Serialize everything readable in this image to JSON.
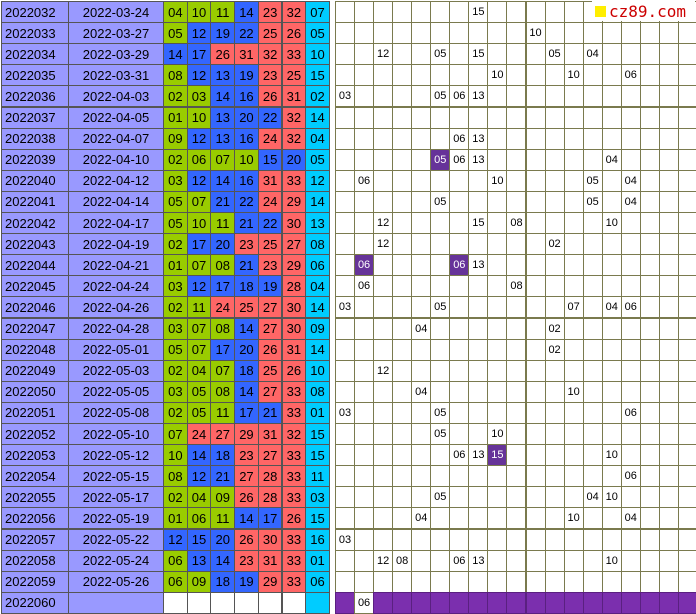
{
  "site_logo": "cz89.com",
  "rows": [
    {
      "issue": "2022032",
      "date": "2022-03-24",
      "nums": [
        "04",
        "10",
        "11",
        "14",
        "23",
        "32",
        "07"
      ],
      "colors": [
        "g",
        "g",
        "g",
        "b",
        "r",
        "r",
        "c"
      ],
      "trend": [
        [
          7,
          "15"
        ]
      ],
      "hl": []
    },
    {
      "issue": "2022033",
      "date": "2022-03-27",
      "nums": [
        "05",
        "12",
        "19",
        "22",
        "25",
        "26",
        "05"
      ],
      "colors": [
        "g",
        "b",
        "b",
        "b",
        "r",
        "r",
        "c"
      ],
      "trend": [
        [
          10,
          "10"
        ]
      ],
      "hl": []
    },
    {
      "issue": "2022034",
      "date": "2022-03-29",
      "nums": [
        "14",
        "17",
        "26",
        "31",
        "32",
        "33",
        "10"
      ],
      "colors": [
        "b",
        "b",
        "r",
        "r",
        "r",
        "r",
        "c"
      ],
      "trend": [
        [
          2,
          "12"
        ],
        [
          5,
          "05"
        ],
        [
          7,
          "15"
        ],
        [
          11,
          "05"
        ],
        [
          13,
          "04"
        ]
      ],
      "hl": []
    },
    {
      "issue": "2022035",
      "date": "2022-03-31",
      "nums": [
        "08",
        "12",
        "13",
        "19",
        "23",
        "25",
        "15"
      ],
      "colors": [
        "g",
        "b",
        "b",
        "b",
        "r",
        "r",
        "c"
      ],
      "trend": [
        [
          8,
          "10"
        ],
        [
          12,
          "10"
        ],
        [
          15,
          "06"
        ]
      ],
      "hl": []
    },
    {
      "issue": "2022036",
      "date": "2022-04-03",
      "nums": [
        "02",
        "03",
        "14",
        "16",
        "26",
        "31",
        "02"
      ],
      "colors": [
        "g",
        "g",
        "b",
        "b",
        "r",
        "r",
        "c"
      ],
      "trend": [
        [
          0,
          "03"
        ],
        [
          5,
          "05"
        ],
        [
          6,
          "06"
        ],
        [
          7,
          "13"
        ]
      ],
      "hl": []
    },
    {
      "issue": "2022037",
      "date": "2022-04-05",
      "nums": [
        "01",
        "10",
        "13",
        "20",
        "22",
        "32",
        "14"
      ],
      "colors": [
        "g",
        "g",
        "b",
        "b",
        "b",
        "r",
        "c"
      ],
      "trend": [],
      "hl": []
    },
    {
      "issue": "2022038",
      "date": "2022-04-07",
      "nums": [
        "09",
        "12",
        "13",
        "16",
        "24",
        "32",
        "04"
      ],
      "colors": [
        "g",
        "b",
        "b",
        "b",
        "r",
        "r",
        "c"
      ],
      "trend": [
        [
          6,
          "06"
        ],
        [
          7,
          "13"
        ]
      ],
      "hl": []
    },
    {
      "issue": "2022039",
      "date": "2022-04-10",
      "nums": [
        "02",
        "06",
        "07",
        "10",
        "15",
        "20",
        "05"
      ],
      "colors": [
        "g",
        "g",
        "g",
        "g",
        "b",
        "b",
        "c"
      ],
      "trend": [
        [
          5,
          "05"
        ],
        [
          6,
          "06"
        ],
        [
          7,
          "13"
        ],
        [
          14,
          "04"
        ]
      ],
      "hl": [
        5
      ]
    },
    {
      "issue": "2022040",
      "date": "2022-04-12",
      "nums": [
        "03",
        "12",
        "14",
        "16",
        "31",
        "33",
        "12"
      ],
      "colors": [
        "g",
        "b",
        "b",
        "b",
        "r",
        "r",
        "c"
      ],
      "trend": [
        [
          1,
          "06"
        ],
        [
          8,
          "10"
        ],
        [
          13,
          "05"
        ],
        [
          15,
          "04"
        ]
      ],
      "hl": []
    },
    {
      "issue": "2022041",
      "date": "2022-04-14",
      "nums": [
        "05",
        "07",
        "21",
        "22",
        "24",
        "29",
        "14"
      ],
      "colors": [
        "g",
        "g",
        "b",
        "b",
        "r",
        "r",
        "c"
      ],
      "trend": [
        [
          5,
          "05"
        ],
        [
          13,
          "05"
        ],
        [
          15,
          "04"
        ]
      ],
      "hl": []
    },
    {
      "issue": "2022042",
      "date": "2022-04-17",
      "nums": [
        "05",
        "10",
        "11",
        "21",
        "22",
        "30",
        "13"
      ],
      "colors": [
        "g",
        "g",
        "g",
        "b",
        "b",
        "r",
        "c"
      ],
      "trend": [
        [
          2,
          "12"
        ],
        [
          7,
          "15"
        ],
        [
          9,
          "08"
        ],
        [
          14,
          "10"
        ]
      ],
      "hl": []
    },
    {
      "issue": "2022043",
      "date": "2022-04-19",
      "nums": [
        "02",
        "17",
        "20",
        "23",
        "25",
        "27",
        "08"
      ],
      "colors": [
        "g",
        "b",
        "b",
        "r",
        "r",
        "r",
        "c"
      ],
      "trend": [
        [
          2,
          "12"
        ],
        [
          11,
          "02"
        ]
      ],
      "hl": []
    },
    {
      "issue": "2022044",
      "date": "2022-04-21",
      "nums": [
        "01",
        "07",
        "08",
        "21",
        "23",
        "29",
        "06"
      ],
      "colors": [
        "g",
        "g",
        "g",
        "b",
        "r",
        "r",
        "c"
      ],
      "trend": [
        [
          1,
          "06"
        ],
        [
          6,
          "06"
        ],
        [
          7,
          "13"
        ]
      ],
      "hl": [
        1,
        6
      ]
    },
    {
      "issue": "2022045",
      "date": "2022-04-24",
      "nums": [
        "03",
        "12",
        "17",
        "18",
        "19",
        "28",
        "04"
      ],
      "colors": [
        "g",
        "b",
        "b",
        "b",
        "b",
        "r",
        "c"
      ],
      "trend": [
        [
          1,
          "06"
        ],
        [
          9,
          "08"
        ]
      ],
      "hl": []
    },
    {
      "issue": "2022046",
      "date": "2022-04-26",
      "nums": [
        "02",
        "11",
        "24",
        "25",
        "27",
        "30",
        "14"
      ],
      "colors": [
        "g",
        "g",
        "r",
        "r",
        "r",
        "r",
        "c"
      ],
      "trend": [
        [
          0,
          "03"
        ],
        [
          5,
          "05"
        ],
        [
          12,
          "07"
        ],
        [
          14,
          "04"
        ],
        [
          15,
          "06"
        ]
      ],
      "hl": []
    },
    {
      "issue": "2022047",
      "date": "2022-04-28",
      "nums": [
        "03",
        "07",
        "08",
        "14",
        "27",
        "30",
        "09"
      ],
      "colors": [
        "g",
        "g",
        "g",
        "b",
        "r",
        "r",
        "c"
      ],
      "trend": [
        [
          4,
          "04"
        ],
        [
          11,
          "02"
        ]
      ],
      "hl": []
    },
    {
      "issue": "2022048",
      "date": "2022-05-01",
      "nums": [
        "05",
        "07",
        "17",
        "20",
        "26",
        "31",
        "14"
      ],
      "colors": [
        "g",
        "g",
        "b",
        "b",
        "r",
        "r",
        "c"
      ],
      "trend": [
        [
          11,
          "02"
        ]
      ],
      "hl": []
    },
    {
      "issue": "2022049",
      "date": "2022-05-03",
      "nums": [
        "02",
        "04",
        "07",
        "18",
        "25",
        "26",
        "10"
      ],
      "colors": [
        "g",
        "g",
        "g",
        "b",
        "r",
        "r",
        "c"
      ],
      "trend": [
        [
          2,
          "12"
        ]
      ],
      "hl": []
    },
    {
      "issue": "2022050",
      "date": "2022-05-05",
      "nums": [
        "03",
        "05",
        "08",
        "14",
        "27",
        "33",
        "08"
      ],
      "colors": [
        "g",
        "g",
        "g",
        "b",
        "r",
        "r",
        "c"
      ],
      "trend": [
        [
          4,
          "04"
        ],
        [
          12,
          "10"
        ]
      ],
      "hl": []
    },
    {
      "issue": "2022051",
      "date": "2022-05-08",
      "nums": [
        "02",
        "05",
        "11",
        "17",
        "21",
        "33",
        "01"
      ],
      "colors": [
        "g",
        "g",
        "g",
        "b",
        "b",
        "r",
        "c"
      ],
      "trend": [
        [
          0,
          "03"
        ],
        [
          5,
          "05"
        ],
        [
          15,
          "06"
        ]
      ],
      "hl": []
    },
    {
      "issue": "2022052",
      "date": "2022-05-10",
      "nums": [
        "07",
        "24",
        "27",
        "29",
        "31",
        "32",
        "15"
      ],
      "colors": [
        "g",
        "r",
        "r",
        "r",
        "r",
        "r",
        "c"
      ],
      "trend": [
        [
          5,
          "05"
        ],
        [
          8,
          "10"
        ]
      ],
      "hl": []
    },
    {
      "issue": "2022053",
      "date": "2022-05-12",
      "nums": [
        "10",
        "14",
        "18",
        "23",
        "27",
        "33",
        "15"
      ],
      "colors": [
        "g",
        "b",
        "b",
        "r",
        "r",
        "r",
        "c"
      ],
      "trend": [
        [
          6,
          "06"
        ],
        [
          7,
          "13"
        ],
        [
          8,
          "15"
        ],
        [
          14,
          "10"
        ]
      ],
      "hl": [
        8
      ]
    },
    {
      "issue": "2022054",
      "date": "2022-05-15",
      "nums": [
        "08",
        "12",
        "21",
        "27",
        "28",
        "33",
        "11"
      ],
      "colors": [
        "g",
        "b",
        "b",
        "r",
        "r",
        "r",
        "c"
      ],
      "trend": [
        [
          15,
          "06"
        ]
      ],
      "hl": []
    },
    {
      "issue": "2022055",
      "date": "2022-05-17",
      "nums": [
        "02",
        "04",
        "09",
        "26",
        "28",
        "33",
        "03"
      ],
      "colors": [
        "g",
        "g",
        "g",
        "r",
        "r",
        "r",
        "c"
      ],
      "trend": [
        [
          5,
          "05"
        ],
        [
          13,
          "04"
        ],
        [
          14,
          "10"
        ]
      ],
      "hl": []
    },
    {
      "issue": "2022056",
      "date": "2022-05-19",
      "nums": [
        "01",
        "06",
        "11",
        "14",
        "17",
        "26",
        "15"
      ],
      "colors": [
        "g",
        "g",
        "g",
        "b",
        "b",
        "r",
        "c"
      ],
      "trend": [
        [
          4,
          "04"
        ],
        [
          12,
          "10"
        ],
        [
          15,
          "04"
        ]
      ],
      "hl": []
    },
    {
      "issue": "2022057",
      "date": "2022-05-22",
      "nums": [
        "12",
        "15",
        "20",
        "26",
        "30",
        "33",
        "16"
      ],
      "colors": [
        "b",
        "b",
        "b",
        "r",
        "r",
        "r",
        "c"
      ],
      "trend": [
        [
          0,
          "03"
        ]
      ],
      "hl": []
    },
    {
      "issue": "2022058",
      "date": "2022-05-24",
      "nums": [
        "06",
        "13",
        "14",
        "23",
        "31",
        "33",
        "01"
      ],
      "colors": [
        "g",
        "b",
        "b",
        "r",
        "r",
        "r",
        "c"
      ],
      "trend": [
        [
          2,
          "12"
        ],
        [
          3,
          "08"
        ],
        [
          6,
          "06"
        ],
        [
          7,
          "13"
        ],
        [
          14,
          "10"
        ]
      ],
      "hl": []
    },
    {
      "issue": "2022059",
      "date": "2022-05-26",
      "nums": [
        "06",
        "09",
        "18",
        "19",
        "29",
        "33",
        "06"
      ],
      "colors": [
        "g",
        "g",
        "b",
        "b",
        "r",
        "r",
        "c"
      ],
      "trend": [],
      "hl": []
    }
  ],
  "next_row": {
    "issue": "2022060",
    "prediction": "06"
  },
  "colors": {
    "issue_bg": "#9999ff",
    "green": "#99cc00",
    "blue": "#3366ff",
    "red": "#ff6666",
    "cyan": "#00ccff",
    "highlight": "#663399",
    "predict": "#7b2fae"
  }
}
